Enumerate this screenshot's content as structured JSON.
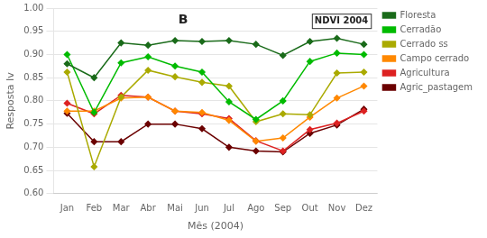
{
  "chart_data": {
    "type": "line",
    "annotations": [
      "B",
      "NDVI 2004"
    ],
    "xlabel": "Mês (2004)",
    "ylabel": "Resposta Iv",
    "categories": [
      "Jan",
      "Feb",
      "Mar",
      "Abr",
      "Mai",
      "Jun",
      "Jul",
      "Ago",
      "Sep",
      "Out",
      "Nov",
      "Dez"
    ],
    "series": [
      {
        "name": "Floresta",
        "color": "#1a6b1a",
        "values": [
          0.88,
          0.85,
          0.925,
          0.92,
          0.93,
          0.928,
          0.93,
          0.922,
          0.898,
          0.928,
          0.935,
          0.922
        ]
      },
      {
        "name": "Cerradão",
        "color": "#00bb00",
        "values": [
          0.9,
          0.775,
          0.882,
          0.895,
          0.875,
          0.862,
          0.798,
          0.76,
          0.8,
          0.885,
          0.903,
          0.9
        ]
      },
      {
        "name": "Cerrado ss",
        "color": "#aaaa00",
        "values": [
          0.862,
          0.658,
          0.808,
          0.866,
          0.852,
          0.84,
          0.832,
          0.755,
          0.772,
          0.77,
          0.86,
          0.862
        ]
      },
      {
        "name": "Campo cerrado",
        "color": "#ff8800",
        "values": [
          0.778,
          0.778,
          0.806,
          0.808,
          0.778,
          0.775,
          0.758,
          0.713,
          0.72,
          0.765,
          0.806,
          0.832
        ]
      },
      {
        "name": "Agricultura",
        "color": "#dd2222",
        "values": [
          0.795,
          0.772,
          0.812,
          0.808,
          0.778,
          0.772,
          0.762,
          0.714,
          0.692,
          0.738,
          0.752,
          0.778
        ]
      },
      {
        "name": "Agric_pastagem",
        "color": "#6b0000",
        "values": [
          0.773,
          0.712,
          0.712,
          0.75,
          0.75,
          0.74,
          0.7,
          0.692,
          0.69,
          0.73,
          0.748,
          0.782
        ]
      }
    ],
    "ylim": [
      0.6,
      1.0
    ],
    "yticks": [
      {
        "value": 0.6,
        "label": "0.60"
      },
      0.65,
      {
        "value": 0.7,
        "label": "0.70"
      },
      0.75,
      {
        "value": 0.8,
        "label": "0.80"
      },
      0.85,
      {
        "value": 0.9,
        "label": "0.90"
      },
      0.95,
      {
        "value": 1.0,
        "label": "1.00"
      }
    ],
    "grid": true,
    "legend": "right",
    "marker": "diamond"
  }
}
